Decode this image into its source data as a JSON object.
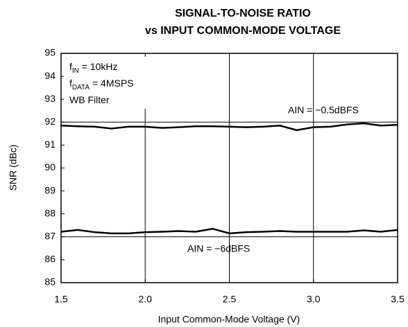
{
  "chart_data": {
    "type": "line",
    "title": [
      "SIGNAL-TO-NOISE RATIO",
      "vs INPUT COMMON-MODE VOLTAGE"
    ],
    "xlabel": "Input Common-Mode Voltage (V)",
    "ylabel": "SNR (dBc)",
    "annotations": [
      [
        "f",
        "IN",
        " = 10kHz"
      ],
      [
        "f",
        "DATA",
        " = 4MSPS"
      ],
      [
        "WB Filter"
      ]
    ],
    "x": [
      1.5,
      1.6,
      1.7,
      1.8,
      1.9,
      2.0,
      2.1,
      2.2,
      2.3,
      2.4,
      2.5,
      2.6,
      2.7,
      2.8,
      2.9,
      3.0,
      3.1,
      3.2,
      3.3,
      3.4,
      3.5
    ],
    "series": [
      {
        "name": "AIN = −0.5dBFS",
        "color": "#000000",
        "values": [
          91.85,
          91.82,
          91.8,
          91.72,
          91.8,
          91.8,
          91.75,
          91.78,
          91.82,
          91.82,
          91.8,
          91.78,
          91.8,
          91.85,
          91.65,
          91.78,
          91.8,
          91.9,
          91.95,
          91.85,
          91.88
        ]
      },
      {
        "name": "AIN = −6dBFS",
        "color": "#000000",
        "values": [
          87.22,
          87.3,
          87.2,
          87.15,
          87.15,
          87.2,
          87.22,
          87.25,
          87.22,
          87.35,
          87.15,
          87.2,
          87.22,
          87.25,
          87.22,
          87.22,
          87.22,
          87.22,
          87.28,
          87.22,
          87.3
        ]
      }
    ],
    "xlim": [
      1.5,
      3.5
    ],
    "xticks": [
      1.5,
      {
        "value": 2,
        "label": "2.0"
      },
      2.5,
      {
        "value": 3,
        "label": "3.0"
      },
      3.5
    ],
    "ylim": [
      85,
      95
    ],
    "yticks": [
      85,
      86,
      87,
      88,
      89,
      90,
      91,
      92,
      93,
      94,
      95
    ],
    "ygrid": [
      87,
      92
    ],
    "grid": true
  }
}
